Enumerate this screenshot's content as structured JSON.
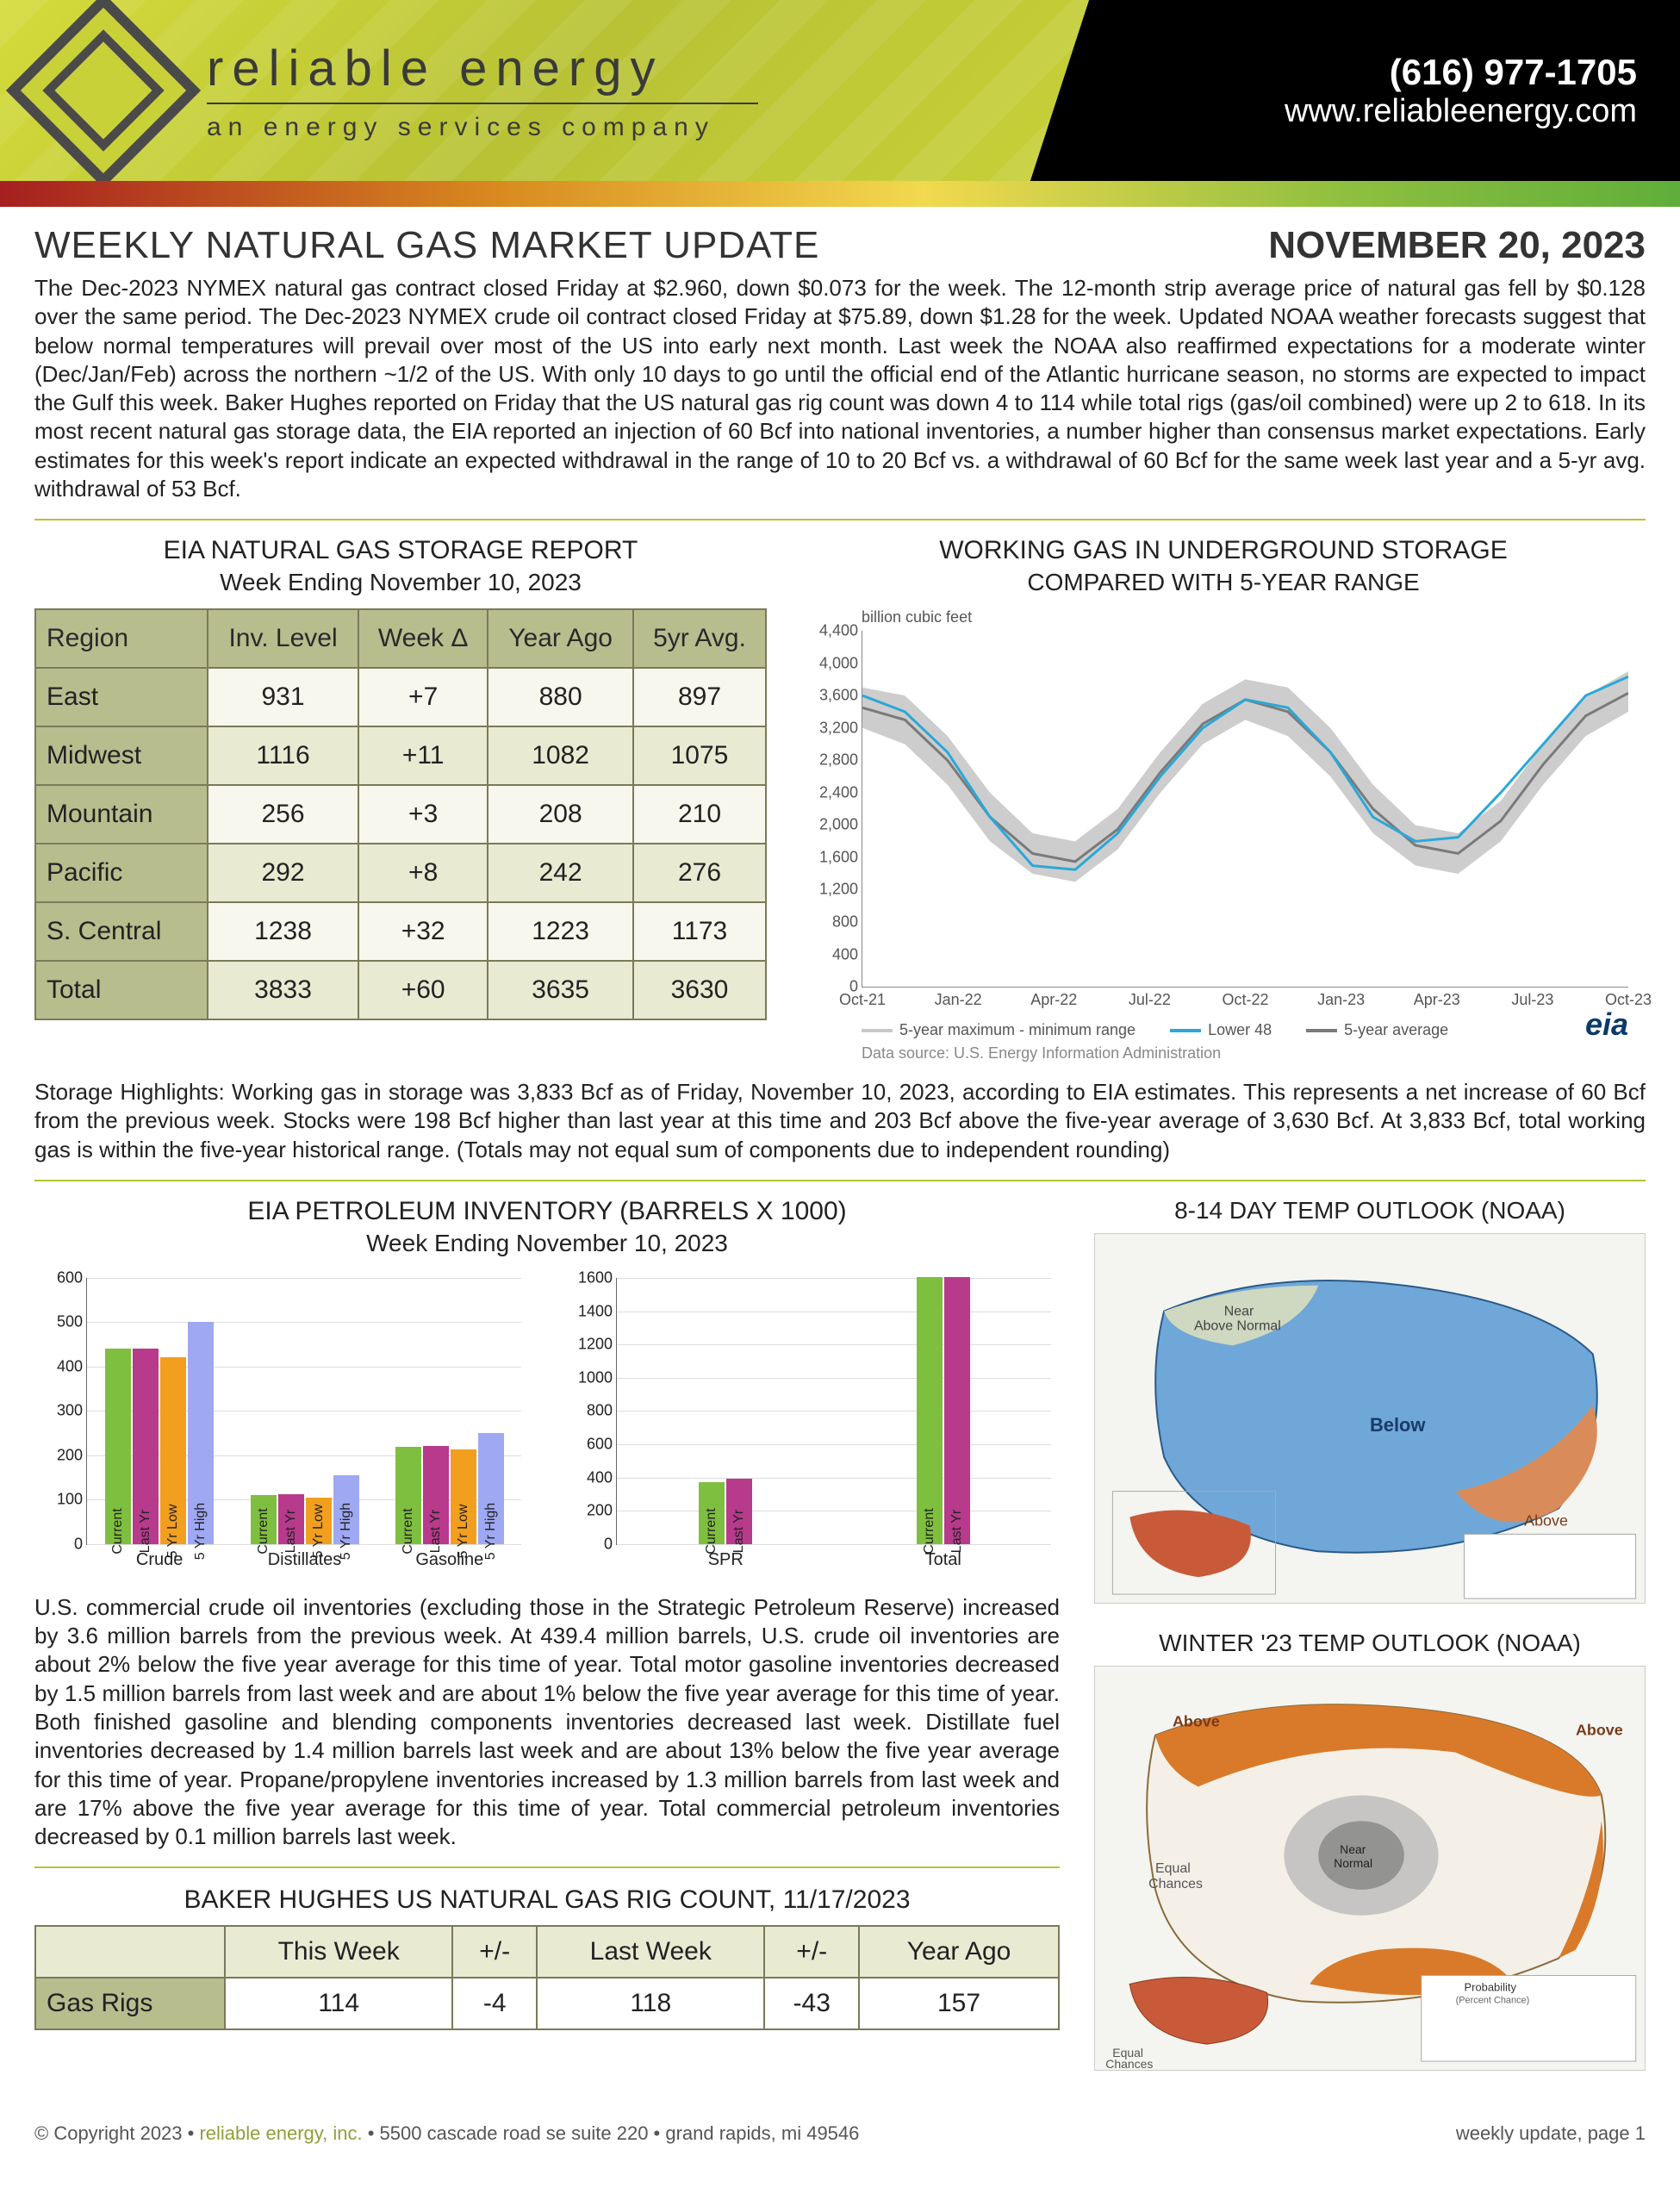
{
  "header": {
    "brand_name": "reliable energy",
    "brand_tag": "an energy services company",
    "phone": "(616) 977-1705",
    "url": "www.reliableenergy.com"
  },
  "title": "WEEKLY NATURAL GAS MARKET UPDATE",
  "date": "NOVEMBER 20, 2023",
  "lead": "The Dec-2023 NYMEX natural gas contract closed Friday at $2.960, down $0.073 for the week. The 12-month strip average price of natural gas fell by $0.128 over the same period. The Dec-2023 NYMEX crude oil contract closed Friday at $75.89, down $1.28 for the week. Updated NOAA weather forecasts suggest that below normal temperatures will prevail over most of the US into early next month.  Last week the NOAA also reaffirmed expectations for a moderate winter (Dec/Jan/Feb) across the northern ~1/2 of the US. With only 10 days to go until the official end of the Atlantic hurricane season, no storms are expected to impact the Gulf this week. Baker Hughes reported on Friday that the US natural gas rig count was down 4 to 114 while total rigs (gas/oil combined) were up 2 to 618. In its most recent natural gas storage data, the EIA reported an injection of 60 Bcf into national inventories, a number higher than consensus market expectations. Early estimates for this week's report indicate an expected withdrawal in the range of 10 to 20 Bcf vs. a withdrawal of 60 Bcf for the same week last year and a 5-yr avg. withdrawal of 53 Bcf.",
  "storage_table": {
    "title": "EIA NATURAL GAS STORAGE REPORT",
    "sub": "Week Ending November 10, 2023",
    "cols": [
      "Region",
      "Inv. Level",
      "Week Δ",
      "Year Ago",
      "5yr Avg."
    ],
    "rows": [
      [
        "East",
        "931",
        "+7",
        "880",
        "897"
      ],
      [
        "Midwest",
        "1116",
        "+11",
        "1082",
        "1075"
      ],
      [
        "Mountain",
        "256",
        "+3",
        "208",
        "210"
      ],
      [
        "Pacific",
        "292",
        "+8",
        "242",
        "276"
      ],
      [
        "S. Central",
        "1238",
        "+32",
        "1223",
        "1173"
      ],
      [
        "Total",
        "3833",
        "+60",
        "3635",
        "3630"
      ]
    ]
  },
  "storage_chart": {
    "title": "WORKING GAS IN UNDERGROUND STORAGE",
    "sub": "COMPARED WITH 5-YEAR RANGE",
    "ylabel": "billion cubic feet",
    "ylim": [
      0,
      4400
    ],
    "ytick_step": 400,
    "x_labels": [
      "Oct-21",
      "Jan-22",
      "Apr-22",
      "Jul-22",
      "Oct-22",
      "Jan-23",
      "Apr-23",
      "Jul-23",
      "Oct-23"
    ],
    "range_color": "#c8c8c8",
    "l48_color": "#2aa8d8",
    "avg_color": "#7a7a7a",
    "legend": {
      "range": "5-year maximum - minimum range",
      "l48": "Lower 48",
      "avg": "5-year average"
    },
    "data_source": "Data source:  U.S. Energy Information Administration",
    "eia_label": "eia",
    "range_upper": [
      3700,
      3600,
      3100,
      2400,
      1900,
      1800,
      2200,
      2900,
      3500,
      3800,
      3700,
      3200,
      2500,
      2000,
      1900,
      2300,
      3000,
      3600,
      3900
    ],
    "range_lower": [
      3200,
      3000,
      2500,
      1800,
      1400,
      1300,
      1700,
      2400,
      3000,
      3300,
      3100,
      2600,
      1900,
      1500,
      1400,
      1800,
      2500,
      3100,
      3400
    ],
    "lower48": [
      3600,
      3400,
      2900,
      2100,
      1500,
      1450,
      1900,
      2600,
      3200,
      3550,
      3450,
      2900,
      2100,
      1800,
      1850,
      2400,
      3000,
      3600,
      3833
    ],
    "five_yr_avg": [
      3450,
      3300,
      2800,
      2100,
      1650,
      1550,
      1950,
      2650,
      3250,
      3550,
      3400,
      2900,
      2200,
      1750,
      1650,
      2050,
      2750,
      3350,
      3630
    ]
  },
  "storage_highlights": "Storage Highlights: Working gas in storage was 3,833 Bcf as of Friday, November 10, 2023, according to EIA estimates. This represents a net increase of 60 Bcf from the previous week. Stocks were 198 Bcf higher than last year at this time and 203 Bcf above the five-year average of 3,630 Bcf. At 3,833 Bcf, total working gas is within the five-year historical range. (Totals may not equal sum of components due to independent rounding)",
  "petroleum": {
    "title": "EIA PETROLEUM INVENTORY (BARRELS X 1000)",
    "sub": "Week Ending November 10, 2023",
    "series_labels": [
      "Current",
      "Last Yr",
      "5 Yr Low",
      "5 Yr High"
    ],
    "series_colors": [
      "#7fbf3f",
      "#b73a8c",
      "#f29e1f",
      "#9fa8f2"
    ],
    "left": {
      "ylim": [
        0,
        600
      ],
      "ytick_step": 100,
      "groups": [
        {
          "label": "Crude",
          "vals": [
            439,
            440,
            420,
            500
          ]
        },
        {
          "label": "Distillates",
          "vals": [
            110,
            112,
            105,
            155
          ]
        },
        {
          "label": "Gasoline",
          "vals": [
            218,
            220,
            212,
            250
          ]
        }
      ]
    },
    "right": {
      "ylim": [
        0,
        1600
      ],
      "ytick_step": 200,
      "groups": [
        {
          "label": "SPR",
          "vals": [
            370,
            390
          ]
        },
        {
          "label": "Total",
          "vals": [
            1600,
            1600
          ]
        }
      ],
      "narrow_series": [
        "Current",
        "Last Yr"
      ]
    },
    "body": "U.S. commercial crude oil inventories (excluding those in the Strategic Petroleum Reserve) increased by 3.6 million barrels from the previous week. At 439.4 million barrels, U.S. crude oil inventories are about 2% below the five year average for this time of year. Total motor gasoline inventories decreased by 1.5 million barrels from last week and are about 1% below the five year average for this time of year. Both finished gasoline and blending components inventories decreased last week. Distillate fuel inventories decreased by 1.4 million barrels last week and are about 13% below the five year average for this time of year. Propane/propylene inventories increased by 1.3 million barrels from last week and are 17% above the five year average for this time of year. Total commercial petroleum inventories decreased by 0.1 million barrels last week."
  },
  "maps": {
    "temp_814_title": "8-14 DAY TEMP OUTLOOK (NOAA)",
    "winter_title": "WINTER '23 TEMP OUTLOOK (NOAA)",
    "temp_814_labels": {
      "near": "Near Normal",
      "above": "Near Above Normal",
      "below": "Below",
      "above2": "Above"
    },
    "winter_labels": {
      "above": "Above",
      "ec": "Equal Chances",
      "near": "Near Normal"
    }
  },
  "rig": {
    "title": "BAKER HUGHES US NATURAL GAS RIG COUNT, 11/17/2023",
    "cols": [
      "",
      "This Week",
      "+/-",
      "Last Week",
      "+/-",
      "Year Ago"
    ],
    "row": [
      "Gas Rigs",
      "114",
      "-4",
      "118",
      "-43",
      "157"
    ]
  },
  "footer": {
    "copyright": "© Copyright 2023  •  ",
    "company": "reliable energy, inc.",
    "address": "  •  5500 cascade road se  suite 220  •  grand rapids, mi  49546",
    "right": "weekly update, page 1"
  }
}
